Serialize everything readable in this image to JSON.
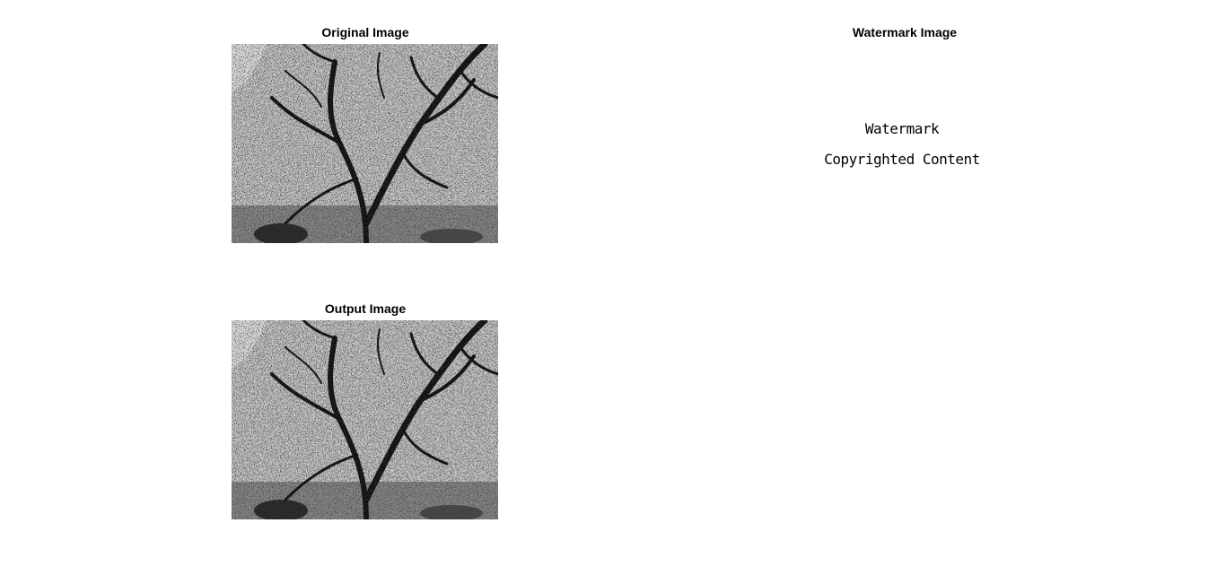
{
  "figure": {
    "subplots": {
      "original": {
        "title": "Original Image",
        "image": "grayscale-tree-photo"
      },
      "watermark": {
        "title": "Watermark Image",
        "lines": [
          "Watermark",
          "Copyrighted Content"
        ]
      },
      "output": {
        "title": "Output Image",
        "image": "grayscale-tree-photo"
      }
    }
  }
}
